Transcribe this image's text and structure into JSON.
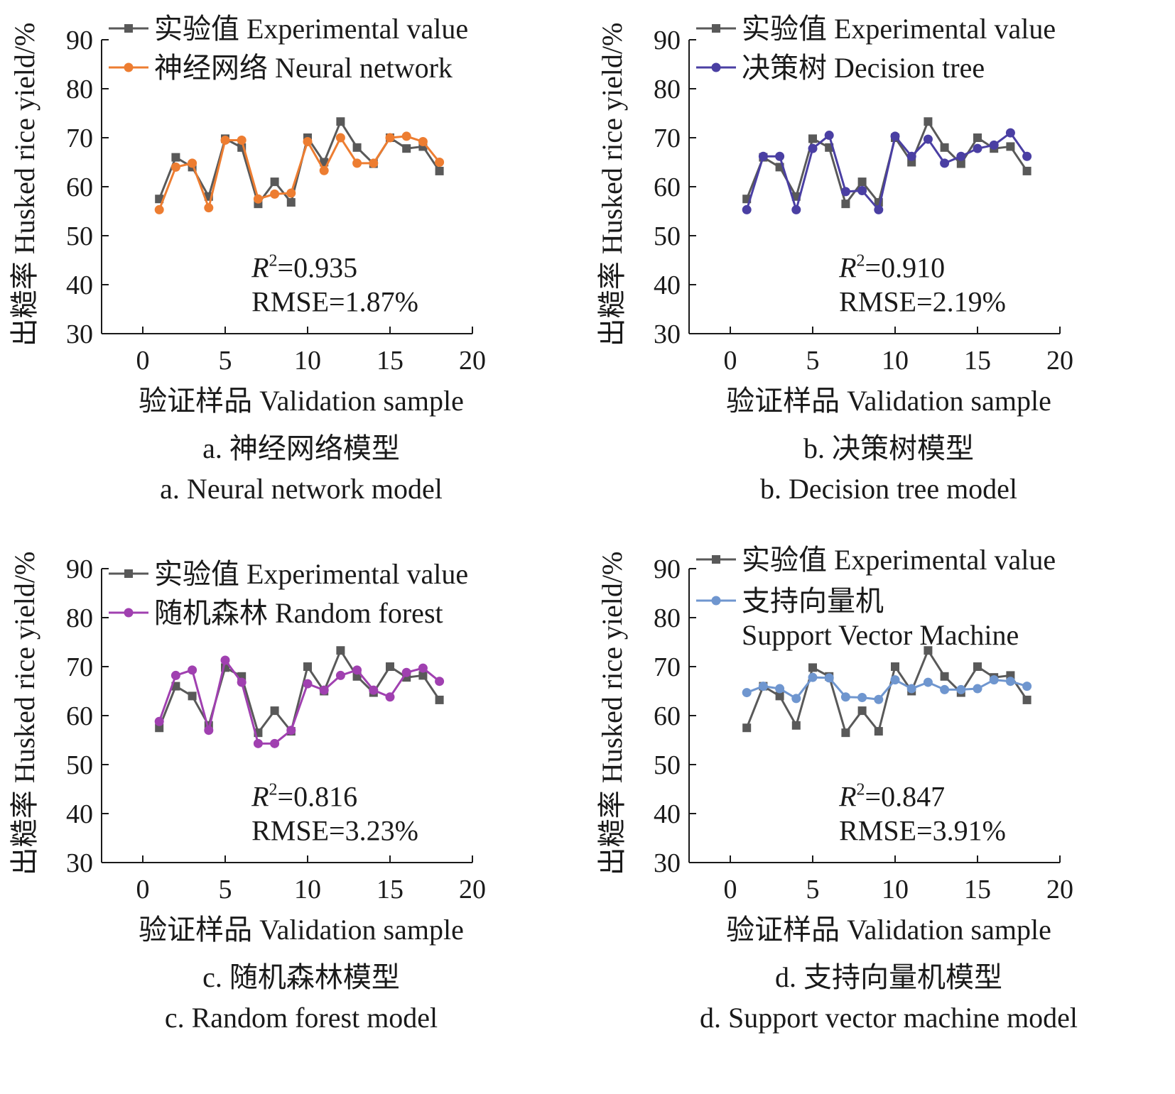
{
  "chart_data": [
    {
      "panel": "a",
      "type": "line",
      "xlabel": "验证样品 Validation sample",
      "ylabel": "出糙率 Husked rice yield/%",
      "x_ticks": [
        "0",
        "5",
        "10",
        "15",
        "20"
      ],
      "y_ticks": [
        "30",
        "40",
        "50",
        "60",
        "70",
        "80",
        "90"
      ],
      "xlim": [
        -2.5,
        20
      ],
      "ylim": [
        30,
        90
      ],
      "x": [
        1,
        2,
        3,
        4,
        5,
        6,
        7,
        8,
        9,
        10,
        11,
        12,
        13,
        14,
        15,
        16,
        17,
        18
      ],
      "series": [
        {
          "name": "实验值 Experimental value",
          "marker": "square",
          "color": "#595959",
          "values": [
            57.5,
            66.0,
            64.0,
            58.0,
            69.8,
            68.0,
            56.5,
            61.0,
            56.8,
            70.0,
            65.0,
            73.3,
            68.0,
            64.7,
            70.0,
            67.8,
            68.2,
            63.2
          ]
        },
        {
          "name": "神经网络 Neural network",
          "marker": "circle",
          "color": "#ed7d31",
          "values": [
            55.3,
            64.0,
            64.8,
            55.7,
            69.5,
            69.5,
            57.5,
            58.5,
            58.7,
            69.2,
            63.3,
            70.0,
            64.8,
            64.8,
            70.0,
            70.3,
            69.2,
            65.0
          ]
        }
      ],
      "annotation": {
        "r2_symbol": "R",
        "r2_exp": "2",
        "r2_value": "=0.935",
        "rmse": "RMSE=1.87%"
      },
      "caption_zh": "a. 神经网络模型",
      "caption_en": "a. Neural network model",
      "legend_position": "top-left"
    },
    {
      "panel": "b",
      "type": "line",
      "xlabel": "验证样品 Validation sample",
      "ylabel": "出糙率 Husked rice yield/%",
      "x_ticks": [
        "0",
        "5",
        "10",
        "15",
        "20"
      ],
      "y_ticks": [
        "30",
        "40",
        "50",
        "60",
        "70",
        "80",
        "90"
      ],
      "xlim": [
        -2.5,
        20
      ],
      "ylim": [
        30,
        90
      ],
      "x": [
        1,
        2,
        3,
        4,
        5,
        6,
        7,
        8,
        9,
        10,
        11,
        12,
        13,
        14,
        15,
        16,
        17,
        18
      ],
      "series": [
        {
          "name": "实验值 Experimental value",
          "marker": "square",
          "color": "#595959",
          "values": [
            57.5,
            66.0,
            64.0,
            58.0,
            69.8,
            68.0,
            56.5,
            61.0,
            56.8,
            70.0,
            65.0,
            73.3,
            68.0,
            64.7,
            70.0,
            67.8,
            68.2,
            63.2
          ]
        },
        {
          "name": "决策树 Decision tree",
          "marker": "circle",
          "color": "#4a3fa3",
          "values": [
            55.3,
            66.2,
            66.2,
            55.3,
            67.8,
            70.5,
            59.0,
            59.2,
            55.3,
            70.3,
            66.2,
            69.7,
            64.8,
            66.2,
            67.8,
            68.5,
            71.0,
            66.2
          ]
        }
      ],
      "annotation": {
        "r2_symbol": "R",
        "r2_exp": "2",
        "r2_value": "=0.910",
        "rmse": "RMSE=2.19%"
      },
      "caption_zh": "b. 决策树模型",
      "caption_en": "b. Decision tree model",
      "legend_position": "top-left"
    },
    {
      "panel": "c",
      "type": "line",
      "xlabel": "验证样品 Validation sample",
      "ylabel": "出糙率 Husked rice yield/%",
      "x_ticks": [
        "0",
        "5",
        "10",
        "15",
        "20"
      ],
      "y_ticks": [
        "30",
        "40",
        "50",
        "60",
        "70",
        "80",
        "90"
      ],
      "xlim": [
        -2.5,
        20
      ],
      "ylim": [
        30,
        90
      ],
      "x": [
        1,
        2,
        3,
        4,
        5,
        6,
        7,
        8,
        9,
        10,
        11,
        12,
        13,
        14,
        15,
        16,
        17,
        18
      ],
      "series": [
        {
          "name": "实验值 Experimental value",
          "marker": "square",
          "color": "#595959",
          "values": [
            57.5,
            66.0,
            64.0,
            58.0,
            69.8,
            68.0,
            56.5,
            61.0,
            56.8,
            70.0,
            65.0,
            73.3,
            68.0,
            64.7,
            70.0,
            67.8,
            68.2,
            63.2
          ]
        },
        {
          "name": "随机森林 Random forest",
          "marker": "circle",
          "color": "#a040b0",
          "values": [
            58.8,
            68.2,
            69.3,
            57.0,
            71.3,
            66.8,
            54.3,
            54.3,
            57.0,
            66.5,
            65.2,
            68.2,
            69.3,
            65.2,
            63.8,
            68.8,
            69.7,
            67.0
          ]
        }
      ],
      "annotation": {
        "r2_symbol": "R",
        "r2_exp": "2",
        "r2_value": "=0.816",
        "rmse": "RMSE=3.23%"
      },
      "caption_zh": "c. 随机森林模型",
      "caption_en": "c. Random forest model",
      "legend_position": "top-left"
    },
    {
      "panel": "d",
      "type": "line",
      "xlabel": "验证样品 Validation sample",
      "ylabel": "出糙率 Husked rice yield/%",
      "x_ticks": [
        "0",
        "5",
        "10",
        "15",
        "20"
      ],
      "y_ticks": [
        "30",
        "40",
        "50",
        "60",
        "70",
        "80",
        "90"
      ],
      "xlim": [
        -2.5,
        20
      ],
      "ylim": [
        30,
        90
      ],
      "x": [
        1,
        2,
        3,
        4,
        5,
        6,
        7,
        8,
        9,
        10,
        11,
        12,
        13,
        14,
        15,
        16,
        17,
        18
      ],
      "series": [
        {
          "name": "实验值 Experimental value",
          "marker": "square",
          "color": "#595959",
          "values": [
            57.5,
            66.0,
            64.0,
            58.0,
            69.8,
            68.0,
            56.5,
            61.0,
            56.8,
            70.0,
            65.0,
            73.3,
            68.0,
            64.7,
            70.0,
            67.8,
            68.2,
            63.2
          ]
        },
        {
          "name": "支持向量机 Support Vector Machine",
          "marker": "circle",
          "color": "#6f96cf",
          "values": [
            64.7,
            66.0,
            65.5,
            63.5,
            67.8,
            67.7,
            63.8,
            63.7,
            63.3,
            67.3,
            65.5,
            66.8,
            65.3,
            65.3,
            65.5,
            67.3,
            67.0,
            66.0
          ]
        }
      ],
      "annotation": {
        "r2_symbol": "R",
        "r2_exp": "2",
        "r2_value": "=0.847",
        "rmse": "RMSE=3.91%"
      },
      "caption_zh": "d. 支持向量机模型",
      "caption_en": "d. Support vector machine model",
      "legend_position": "top-left"
    }
  ]
}
